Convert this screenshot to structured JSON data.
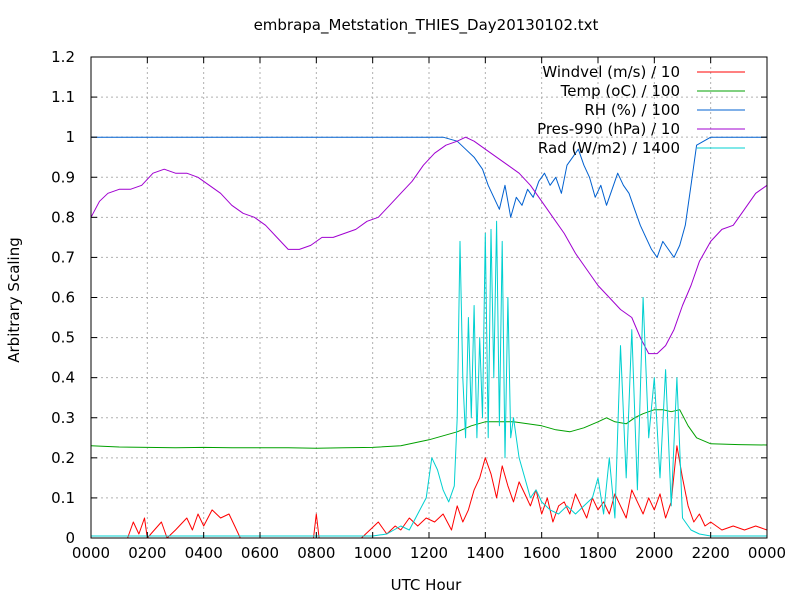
{
  "chart_data": {
    "type": "line",
    "title": "embrapa_Metstation_THIES_Day20130102.txt",
    "xlabel": "UTC Hour",
    "ylabel": "Arbitrary Scaling",
    "xlim": [
      0,
      24
    ],
    "ylim": [
      0,
      1.2
    ],
    "grid": true,
    "legend_position": "top-right",
    "x_ticks": [
      {
        "value": 0,
        "label": "0000"
      },
      {
        "value": 2,
        "label": "0200"
      },
      {
        "value": 4,
        "label": "0400"
      },
      {
        "value": 6,
        "label": "0600"
      },
      {
        "value": 8,
        "label": "0800"
      },
      {
        "value": 10,
        "label": "1000"
      },
      {
        "value": 12,
        "label": "1200"
      },
      {
        "value": 14,
        "label": "1400"
      },
      {
        "value": 16,
        "label": "1600"
      },
      {
        "value": 18,
        "label": "1800"
      },
      {
        "value": 20,
        "label": "2000"
      },
      {
        "value": 22,
        "label": "2200"
      },
      {
        "value": 24,
        "label": "0000"
      }
    ],
    "y_ticks": [
      {
        "value": 0,
        "label": "0"
      },
      {
        "value": 0.1,
        "label": "0.1"
      },
      {
        "value": 0.2,
        "label": "0.2"
      },
      {
        "value": 0.3,
        "label": "0.3"
      },
      {
        "value": 0.4,
        "label": "0.4"
      },
      {
        "value": 0.5,
        "label": "0.5"
      },
      {
        "value": 0.6,
        "label": "0.6"
      },
      {
        "value": 0.7,
        "label": "0.7"
      },
      {
        "value": 0.8,
        "label": "0.8"
      },
      {
        "value": 0.9,
        "label": "0.9"
      },
      {
        "value": 1.0,
        "label": "1"
      },
      {
        "value": 1.1,
        "label": "1.1"
      },
      {
        "value": 1.2,
        "label": "1.2"
      }
    ],
    "series": [
      {
        "name": "Windvel (m/s) / 10",
        "color": "#ff0000",
        "x": [
          0,
          1.3,
          1.5,
          1.7,
          1.9,
          2.0,
          2.5,
          2.7,
          3.0,
          3.4,
          3.6,
          3.8,
          4.0,
          4.3,
          4.6,
          4.9,
          5.1,
          5.3,
          5.5,
          6.0,
          7.0,
          7.9,
          8.0,
          8.1,
          9.0,
          9.6,
          9.9,
          10.2,
          10.5,
          10.8,
          11.0,
          11.3,
          11.6,
          11.9,
          12.2,
          12.5,
          12.8,
          13.0,
          13.2,
          13.4,
          13.6,
          13.8,
          14.0,
          14.2,
          14.4,
          14.6,
          14.8,
          15.0,
          15.2,
          15.4,
          15.6,
          15.8,
          16.0,
          16.2,
          16.4,
          16.6,
          16.8,
          17.0,
          17.2,
          17.4,
          17.6,
          17.8,
          18.0,
          18.2,
          18.4,
          18.6,
          18.8,
          19.0,
          19.2,
          19.4,
          19.6,
          19.8,
          20.0,
          20.2,
          20.4,
          20.6,
          20.8,
          21.0,
          21.2,
          21.4,
          21.6,
          21.8,
          22.0,
          22.4,
          22.8,
          23.2,
          23.6,
          24.0
        ],
        "y": [
          0.0,
          0.0,
          0.04,
          0.01,
          0.05,
          0.0,
          0.04,
          0.0,
          0.02,
          0.05,
          0.02,
          0.06,
          0.03,
          0.07,
          0.05,
          0.06,
          0.03,
          0.0,
          0.0,
          0.0,
          0.0,
          0.0,
          0.06,
          0.0,
          0.0,
          0.0,
          0.02,
          0.04,
          0.01,
          0.03,
          0.02,
          0.05,
          0.03,
          0.05,
          0.04,
          0.06,
          0.02,
          0.08,
          0.04,
          0.07,
          0.12,
          0.15,
          0.2,
          0.16,
          0.1,
          0.18,
          0.13,
          0.09,
          0.14,
          0.11,
          0.08,
          0.12,
          0.06,
          0.1,
          0.04,
          0.08,
          0.09,
          0.06,
          0.11,
          0.08,
          0.05,
          0.1,
          0.07,
          0.09,
          0.06,
          0.11,
          0.08,
          0.05,
          0.12,
          0.09,
          0.06,
          0.1,
          0.07,
          0.11,
          0.05,
          0.09,
          0.23,
          0.15,
          0.08,
          0.04,
          0.06,
          0.03,
          0.04,
          0.02,
          0.03,
          0.02,
          0.03,
          0.02
        ]
      },
      {
        "name": "Temp (oC) / 100",
        "color": "#00a000",
        "x": [
          0,
          1,
          2,
          3,
          4,
          5,
          6,
          7,
          8,
          9,
          10,
          11,
          12,
          12.5,
          13,
          13.5,
          14,
          14.5,
          15,
          15.5,
          16,
          16.5,
          17,
          17.5,
          18,
          18.3,
          18.6,
          19,
          19.3,
          19.6,
          20,
          20.3,
          20.6,
          20.9,
          21.2,
          21.5,
          22,
          23,
          24
        ],
        "y": [
          0.23,
          0.227,
          0.226,
          0.225,
          0.226,
          0.225,
          0.225,
          0.225,
          0.224,
          0.225,
          0.226,
          0.23,
          0.245,
          0.255,
          0.265,
          0.28,
          0.29,
          0.29,
          0.29,
          0.285,
          0.28,
          0.27,
          0.265,
          0.275,
          0.29,
          0.3,
          0.29,
          0.285,
          0.3,
          0.31,
          0.32,
          0.32,
          0.315,
          0.32,
          0.28,
          0.25,
          0.235,
          0.233,
          0.232
        ]
      },
      {
        "name": "RH (%) / 100",
        "color": "#0060d0",
        "x": [
          0,
          2,
          4,
          6,
          8,
          10,
          12,
          12.5,
          13,
          13.3,
          13.6,
          13.9,
          14.1,
          14.3,
          14.5,
          14.7,
          14.9,
          15.1,
          15.3,
          15.5,
          15.7,
          15.9,
          16.1,
          16.3,
          16.5,
          16.7,
          16.9,
          17.1,
          17.3,
          17.5,
          17.7,
          17.9,
          18.1,
          18.3,
          18.5,
          18.7,
          18.9,
          19.1,
          19.3,
          19.5,
          19.7,
          19.9,
          20.1,
          20.3,
          20.5,
          20.7,
          20.9,
          21.1,
          21.3,
          21.5,
          22,
          23,
          24
        ],
        "y": [
          1.0,
          1.0,
          1.0,
          1.0,
          1.0,
          1.0,
          1.0,
          1.0,
          0.99,
          0.97,
          0.95,
          0.92,
          0.88,
          0.85,
          0.82,
          0.88,
          0.8,
          0.85,
          0.83,
          0.87,
          0.85,
          0.89,
          0.91,
          0.88,
          0.9,
          0.86,
          0.93,
          0.95,
          0.97,
          0.93,
          0.9,
          0.85,
          0.88,
          0.83,
          0.87,
          0.91,
          0.88,
          0.86,
          0.82,
          0.78,
          0.75,
          0.72,
          0.7,
          0.74,
          0.72,
          0.7,
          0.73,
          0.78,
          0.88,
          0.98,
          1.0,
          1.0,
          1.0
        ]
      },
      {
        "name": "Pres-990 (hPa) / 10",
        "color": "#a000d0",
        "x": [
          0,
          0.3,
          0.6,
          1,
          1.4,
          1.8,
          2.2,
          2.6,
          3.0,
          3.4,
          3.8,
          4.2,
          4.6,
          5.0,
          5.4,
          5.8,
          6.2,
          6.6,
          7.0,
          7.4,
          7.8,
          8.2,
          8.6,
          9.0,
          9.4,
          9.8,
          10.2,
          10.6,
          11.0,
          11.4,
          11.8,
          12.2,
          12.6,
          13.0,
          13.3,
          13.6,
          14.0,
          14.4,
          14.8,
          15.2,
          15.6,
          16.0,
          16.4,
          16.8,
          17.2,
          17.6,
          18.0,
          18.4,
          18.8,
          19.2,
          19.5,
          19.8,
          20.1,
          20.4,
          20.7,
          21.0,
          21.3,
          21.6,
          22.0,
          22.4,
          22.8,
          23.2,
          23.6,
          24.0
        ],
        "y": [
          0.8,
          0.84,
          0.86,
          0.87,
          0.87,
          0.88,
          0.91,
          0.92,
          0.91,
          0.91,
          0.9,
          0.88,
          0.86,
          0.83,
          0.81,
          0.8,
          0.78,
          0.75,
          0.72,
          0.72,
          0.73,
          0.75,
          0.75,
          0.76,
          0.77,
          0.79,
          0.8,
          0.83,
          0.86,
          0.89,
          0.93,
          0.96,
          0.98,
          0.99,
          1.0,
          0.99,
          0.97,
          0.95,
          0.93,
          0.91,
          0.88,
          0.84,
          0.8,
          0.76,
          0.71,
          0.67,
          0.63,
          0.6,
          0.57,
          0.55,
          0.5,
          0.46,
          0.46,
          0.48,
          0.52,
          0.58,
          0.63,
          0.69,
          0.74,
          0.77,
          0.78,
          0.82,
          0.86,
          0.88
        ]
      },
      {
        "name": "Rad (W/m2) / 1400",
        "color": "#00d0d0",
        "x": [
          0,
          2,
          4,
          6,
          8,
          9.5,
          10,
          10.5,
          11.0,
          11.3,
          11.6,
          11.9,
          12.1,
          12.3,
          12.5,
          12.7,
          12.9,
          13.0,
          13.1,
          13.2,
          13.3,
          13.4,
          13.5,
          13.6,
          13.7,
          13.8,
          13.9,
          14.0,
          14.1,
          14.2,
          14.3,
          14.4,
          14.5,
          14.6,
          14.7,
          14.8,
          14.9,
          15.0,
          15.2,
          15.4,
          15.6,
          15.8,
          16.0,
          16.3,
          16.6,
          16.9,
          17.2,
          17.5,
          17.8,
          18.0,
          18.2,
          18.4,
          18.6,
          18.8,
          19.0,
          19.2,
          19.4,
          19.6,
          19.8,
          20.0,
          20.2,
          20.4,
          20.6,
          20.8,
          21.0,
          21.3,
          21.6,
          22.0,
          22.5,
          23.0,
          24.0
        ],
        "y": [
          0.005,
          0.005,
          0.005,
          0.005,
          0.005,
          0.005,
          0.005,
          0.01,
          0.03,
          0.02,
          0.06,
          0.1,
          0.2,
          0.17,
          0.12,
          0.09,
          0.13,
          0.3,
          0.74,
          0.4,
          0.25,
          0.55,
          0.3,
          0.58,
          0.25,
          0.5,
          0.3,
          0.76,
          0.25,
          0.77,
          0.4,
          0.79,
          0.28,
          0.74,
          0.2,
          0.6,
          0.25,
          0.3,
          0.2,
          0.15,
          0.1,
          0.12,
          0.09,
          0.07,
          0.06,
          0.08,
          0.06,
          0.08,
          0.1,
          0.15,
          0.06,
          0.2,
          0.05,
          0.48,
          0.15,
          0.52,
          0.12,
          0.6,
          0.25,
          0.4,
          0.15,
          0.42,
          0.08,
          0.4,
          0.05,
          0.02,
          0.01,
          0.005,
          0.005,
          0.005,
          0.005
        ]
      }
    ]
  }
}
